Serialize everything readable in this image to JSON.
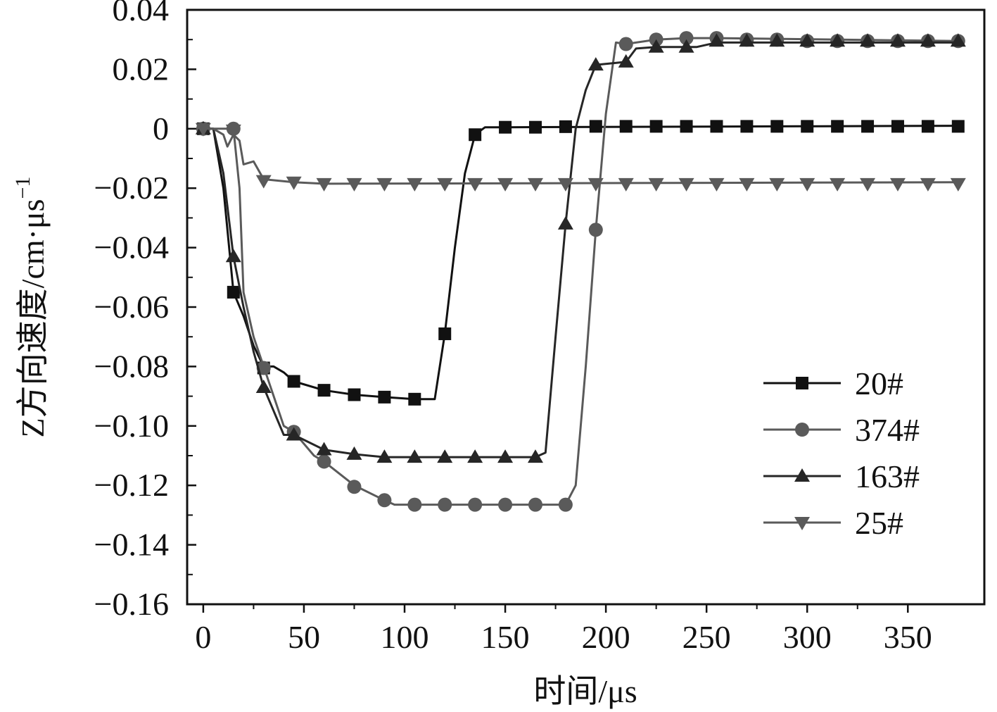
{
  "chart_data": {
    "type": "line",
    "xlabel": "时间/μs",
    "ylabel": "Z方向速度/cm·μs",
    "ylabel_superscript": "−1",
    "xlim": [
      -8,
      388
    ],
    "ylim": [
      -0.16,
      0.04
    ],
    "x_ticks": [
      0,
      50,
      100,
      150,
      200,
      250,
      300,
      350
    ],
    "x_tick_labels": [
      "0",
      "50",
      "100",
      "150",
      "200",
      "250",
      "300",
      "350"
    ],
    "y_ticks": [
      0.04,
      0.02,
      0,
      -0.02,
      -0.04,
      -0.06,
      -0.08,
      -0.1,
      -0.12,
      -0.14,
      -0.16
    ],
    "y_tick_labels": [
      "0.04",
      "0.02",
      "0",
      "−0.02",
      "−0.04",
      "−0.06",
      "−0.08",
      "−0.10",
      "−0.12",
      "−0.14",
      "−0.16"
    ],
    "grid": false,
    "legend_position": "bottom-right",
    "series": [
      {
        "name": "20#",
        "marker": "square",
        "color": "#111111",
        "line": [
          [
            0,
            0
          ],
          [
            5,
            0
          ],
          [
            10,
            -0.02
          ],
          [
            15,
            -0.055
          ],
          [
            20,
            -0.063
          ],
          [
            25,
            -0.073
          ],
          [
            30,
            -0.08
          ],
          [
            35,
            -0.08
          ],
          [
            40,
            -0.082
          ],
          [
            45,
            -0.085
          ],
          [
            60,
            -0.088
          ],
          [
            75,
            -0.0895
          ],
          [
            90,
            -0.0903
          ],
          [
            105,
            -0.091
          ],
          [
            115,
            -0.091
          ],
          [
            120,
            -0.069
          ],
          [
            125,
            -0.04
          ],
          [
            130,
            -0.015
          ],
          [
            135,
            -0.002
          ],
          [
            140,
            0.0005
          ],
          [
            150,
            0.0005
          ],
          [
            375,
            0.001
          ]
        ],
        "markers": [
          [
            0,
            0
          ],
          [
            15,
            -0.055
          ],
          [
            30,
            -0.0805
          ],
          [
            45,
            -0.085
          ],
          [
            60,
            -0.088
          ],
          [
            75,
            -0.0895
          ],
          [
            90,
            -0.0903
          ],
          [
            105,
            -0.091
          ],
          [
            120,
            -0.069
          ],
          [
            135,
            -0.002
          ],
          [
            150,
            0.0005
          ],
          [
            165,
            0.0005
          ],
          [
            180,
            0.0007
          ],
          [
            195,
            0.0008
          ],
          [
            210,
            0.0008
          ],
          [
            225,
            0.0008
          ],
          [
            240,
            0.0008
          ],
          [
            255,
            0.0008
          ],
          [
            270,
            0.0008
          ],
          [
            285,
            0.0008
          ],
          [
            300,
            0.0008
          ],
          [
            315,
            0.0008
          ],
          [
            330,
            0.0008
          ],
          [
            345,
            0.0008
          ],
          [
            360,
            0.0008
          ],
          [
            375,
            0.0008
          ]
        ]
      },
      {
        "name": "374#",
        "marker": "circle",
        "color": "#5a5a5a",
        "line": [
          [
            0,
            0
          ],
          [
            15,
            0
          ],
          [
            18,
            -0.02
          ],
          [
            20,
            -0.055
          ],
          [
            25,
            -0.07
          ],
          [
            30,
            -0.08
          ],
          [
            35,
            -0.09
          ],
          [
            40,
            -0.1
          ],
          [
            45,
            -0.102
          ],
          [
            55,
            -0.11
          ],
          [
            60,
            -0.112
          ],
          [
            75,
            -0.12
          ],
          [
            90,
            -0.125
          ],
          [
            95,
            -0.1265
          ],
          [
            105,
            -0.1265
          ],
          [
            180,
            -0.1265
          ],
          [
            185,
            -0.12
          ],
          [
            190,
            -0.08
          ],
          [
            195,
            -0.034
          ],
          [
            200,
            0.005
          ],
          [
            205,
            0.029
          ],
          [
            210,
            0.0285
          ],
          [
            225,
            0.03
          ],
          [
            240,
            0.0305
          ],
          [
            255,
            0.0305
          ],
          [
            375,
            0.0295
          ]
        ],
        "markers": [
          [
            0,
            0
          ],
          [
            15,
            0
          ],
          [
            30,
            -0.0805
          ],
          [
            45,
            -0.102
          ],
          [
            60,
            -0.112
          ],
          [
            75,
            -0.1205
          ],
          [
            90,
            -0.125
          ],
          [
            105,
            -0.1265
          ],
          [
            120,
            -0.1265
          ],
          [
            135,
            -0.1265
          ],
          [
            150,
            -0.1265
          ],
          [
            165,
            -0.1265
          ],
          [
            180,
            -0.1265
          ],
          [
            195,
            -0.034
          ],
          [
            210,
            0.0285
          ],
          [
            225,
            0.03
          ],
          [
            240,
            0.0305
          ],
          [
            255,
            0.0305
          ],
          [
            270,
            0.03
          ],
          [
            285,
            0.03
          ],
          [
            300,
            0.0295
          ],
          [
            315,
            0.0295
          ],
          [
            330,
            0.0295
          ],
          [
            345,
            0.0295
          ],
          [
            360,
            0.0295
          ],
          [
            375,
            0.0295
          ]
        ]
      },
      {
        "name": "163#",
        "marker": "triangle-up",
        "color": "#262626",
        "line": [
          [
            0,
            0
          ],
          [
            5,
            0
          ],
          [
            10,
            -0.015
          ],
          [
            15,
            -0.043
          ],
          [
            20,
            -0.06
          ],
          [
            25,
            -0.075
          ],
          [
            30,
            -0.087
          ],
          [
            35,
            -0.095
          ],
          [
            40,
            -0.103
          ],
          [
            45,
            -0.103
          ],
          [
            60,
            -0.108
          ],
          [
            75,
            -0.1095
          ],
          [
            90,
            -0.1105
          ],
          [
            105,
            -0.1105
          ],
          [
            165,
            -0.1105
          ],
          [
            170,
            -0.109
          ],
          [
            175,
            -0.07
          ],
          [
            180,
            -0.032
          ],
          [
            185,
            0.0
          ],
          [
            190,
            0.013
          ],
          [
            195,
            0.0215
          ],
          [
            210,
            0.0225
          ],
          [
            215,
            0.027
          ],
          [
            225,
            0.0275
          ],
          [
            240,
            0.0275
          ],
          [
            245,
            0.0275
          ],
          [
            255,
            0.029
          ],
          [
            375,
            0.029
          ]
        ],
        "markers": [
          [
            0,
            0
          ],
          [
            15,
            -0.043
          ],
          [
            30,
            -0.087
          ],
          [
            45,
            -0.103
          ],
          [
            60,
            -0.108
          ],
          [
            75,
            -0.1095
          ],
          [
            90,
            -0.1105
          ],
          [
            105,
            -0.1105
          ],
          [
            120,
            -0.1105
          ],
          [
            135,
            -0.1105
          ],
          [
            150,
            -0.1105
          ],
          [
            165,
            -0.1105
          ],
          [
            180,
            -0.032
          ],
          [
            195,
            0.0215
          ],
          [
            210,
            0.0225
          ],
          [
            225,
            0.0275
          ],
          [
            240,
            0.0275
          ],
          [
            255,
            0.0295
          ],
          [
            270,
            0.0295
          ],
          [
            285,
            0.0295
          ],
          [
            300,
            0.0295
          ],
          [
            315,
            0.0295
          ],
          [
            330,
            0.0295
          ],
          [
            345,
            0.0295
          ],
          [
            360,
            0.0295
          ],
          [
            375,
            0.0295
          ]
        ]
      },
      {
        "name": "25#",
        "marker": "triangle-down",
        "color": "#5a5a5a",
        "line": [
          [
            0,
            0
          ],
          [
            5,
            0
          ],
          [
            10,
            -0.002
          ],
          [
            12,
            -0.006
          ],
          [
            15,
            -0.002
          ],
          [
            18,
            -0.004
          ],
          [
            20,
            -0.012
          ],
          [
            25,
            -0.011
          ],
          [
            30,
            -0.017
          ],
          [
            45,
            -0.018
          ],
          [
            60,
            -0.0185
          ],
          [
            375,
            -0.018
          ]
        ],
        "markers": [
          [
            0,
            0
          ],
          [
            15,
            -0.0005
          ],
          [
            30,
            -0.0175
          ],
          [
            45,
            -0.018
          ],
          [
            60,
            -0.0185
          ],
          [
            75,
            -0.0185
          ],
          [
            90,
            -0.0185
          ],
          [
            105,
            -0.0185
          ],
          [
            120,
            -0.0185
          ],
          [
            135,
            -0.0185
          ],
          [
            150,
            -0.0185
          ],
          [
            165,
            -0.0185
          ],
          [
            180,
            -0.0185
          ],
          [
            195,
            -0.0185
          ],
          [
            210,
            -0.0185
          ],
          [
            225,
            -0.0185
          ],
          [
            240,
            -0.0185
          ],
          [
            255,
            -0.0185
          ],
          [
            270,
            -0.0185
          ],
          [
            285,
            -0.0185
          ],
          [
            300,
            -0.0185
          ],
          [
            315,
            -0.0185
          ],
          [
            330,
            -0.0185
          ],
          [
            345,
            -0.0185
          ],
          [
            360,
            -0.0185
          ],
          [
            375,
            -0.0185
          ]
        ]
      }
    ]
  }
}
